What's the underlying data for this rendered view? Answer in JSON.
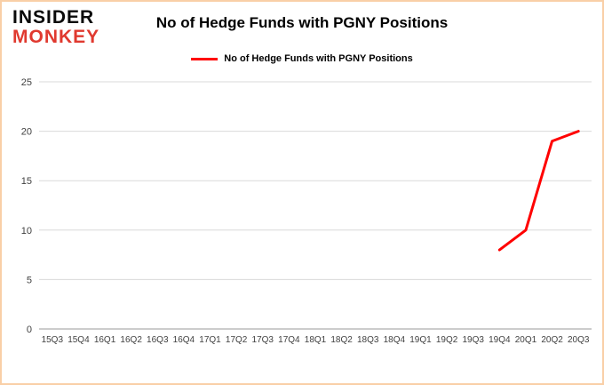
{
  "logo": {
    "line1": "INSIDER",
    "line2": "MONKEY"
  },
  "header": {
    "title": "No of Hedge Funds with PGNY Positions"
  },
  "legend": {
    "label": "No of Hedge Funds with PGNY Positions",
    "color": "#ff0000"
  },
  "colors": {
    "line": "#ff0000",
    "grid": "#d9d9d9",
    "axis": "#999999",
    "border": "#f9cfa7",
    "logo_red": "#e0392f",
    "tick_text": "#404040"
  },
  "chart_data": {
    "type": "line",
    "title": "No of Hedge Funds with PGNY Positions",
    "categories": [
      "15Q3",
      "15Q4",
      "16Q1",
      "16Q2",
      "16Q3",
      "16Q4",
      "17Q1",
      "17Q2",
      "17Q3",
      "17Q4",
      "18Q1",
      "18Q2",
      "18Q3",
      "18Q4",
      "19Q1",
      "19Q2",
      "19Q3",
      "19Q4",
      "20Q1",
      "20Q2",
      "20Q3"
    ],
    "series": [
      {
        "name": "No of Hedge Funds with PGNY Positions",
        "color": "#ff0000",
        "values": [
          null,
          null,
          null,
          null,
          null,
          null,
          null,
          null,
          null,
          null,
          null,
          null,
          null,
          null,
          null,
          null,
          null,
          8,
          10,
          19,
          20
        ]
      }
    ],
    "xlabel": "",
    "ylabel": "",
    "ylim": [
      0,
      25
    ],
    "yticks": [
      0,
      5,
      10,
      15,
      20,
      25
    ],
    "grid": true,
    "legend_position": "top"
  }
}
